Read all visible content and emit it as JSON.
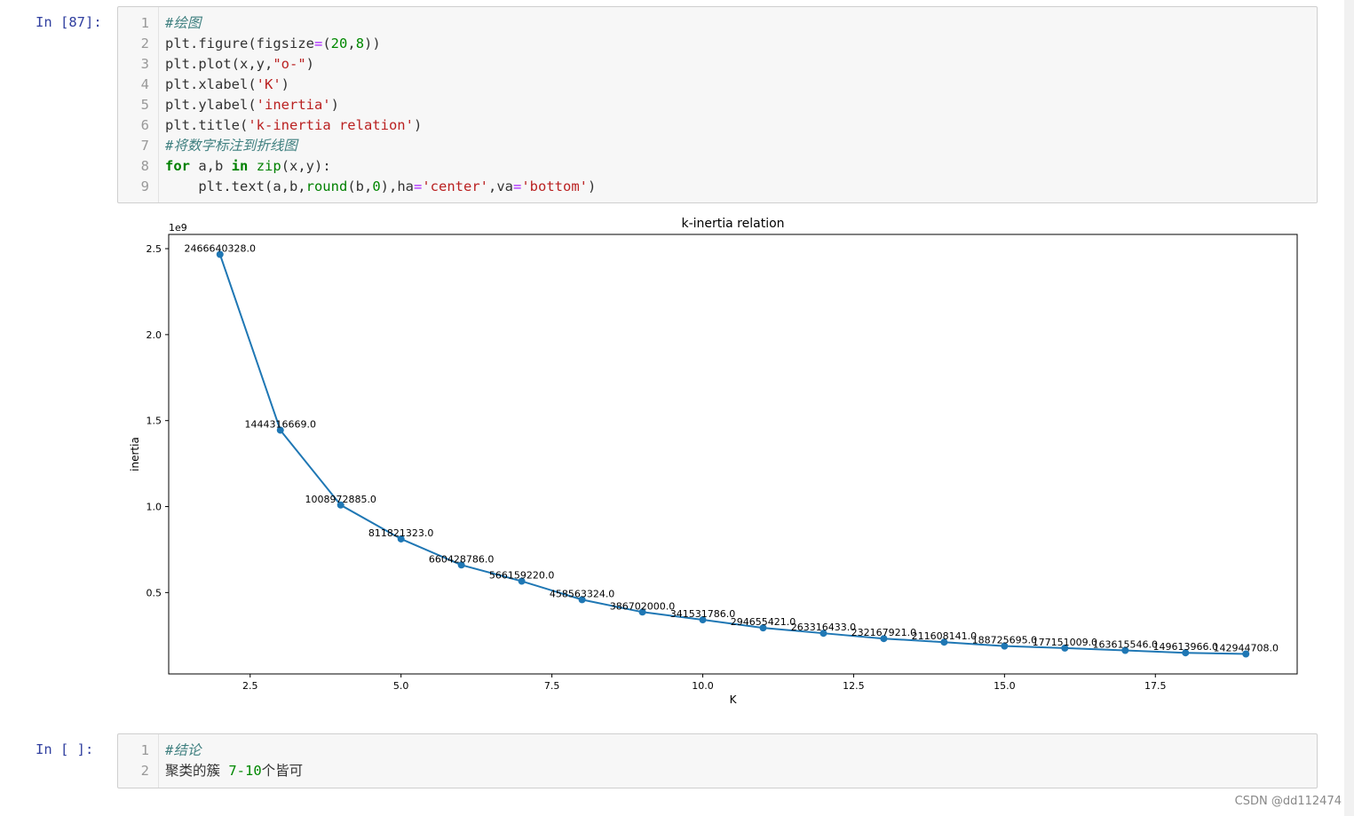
{
  "cells": [
    {
      "prompt": "In [87]:",
      "line_numbers": [
        1,
        2,
        3,
        4,
        5,
        6,
        7,
        8,
        9
      ],
      "lines": [
        {
          "tokens": [
            {
              "text": "#绘图",
              "color": "#408080",
              "italic": true
            }
          ]
        },
        {
          "tokens": [
            {
              "text": "plt.figure(figsize",
              "color": "#333333"
            },
            {
              "text": "=",
              "color": "#aa22ff"
            },
            {
              "text": "(",
              "color": "#333333"
            },
            {
              "text": "20",
              "color": "#008800"
            },
            {
              "text": ",",
              "color": "#333333"
            },
            {
              "text": "8",
              "color": "#008800"
            },
            {
              "text": "))",
              "color": "#333333"
            }
          ]
        },
        {
          "tokens": [
            {
              "text": "plt.plot(x,y,",
              "color": "#333333"
            },
            {
              "text": "\"o-\"",
              "color": "#ba2121"
            },
            {
              "text": ")",
              "color": "#333333"
            }
          ]
        },
        {
          "tokens": [
            {
              "text": "plt.xlabel(",
              "color": "#333333"
            },
            {
              "text": "'K'",
              "color": "#ba2121"
            },
            {
              "text": ")",
              "color": "#333333"
            }
          ]
        },
        {
          "tokens": [
            {
              "text": "plt.ylabel(",
              "color": "#333333"
            },
            {
              "text": "'inertia'",
              "color": "#ba2121"
            },
            {
              "text": ")",
              "color": "#333333"
            }
          ]
        },
        {
          "tokens": [
            {
              "text": "plt.title(",
              "color": "#333333"
            },
            {
              "text": "'k-inertia relation'",
              "color": "#ba2121"
            },
            {
              "text": ")",
              "color": "#333333"
            }
          ]
        },
        {
          "tokens": [
            {
              "text": "#将数字标注到折线图",
              "color": "#408080",
              "italic": true
            }
          ]
        },
        {
          "tokens": [
            {
              "text": "for",
              "color": "#008000",
              "bold": true
            },
            {
              "text": " a,b ",
              "color": "#333333"
            },
            {
              "text": "in",
              "color": "#008000",
              "bold": true
            },
            {
              "text": " ",
              "color": "#333333"
            },
            {
              "text": "zip",
              "color": "#008000"
            },
            {
              "text": "(x,y):",
              "color": "#333333"
            }
          ]
        },
        {
          "tokens": [
            {
              "text": "    plt.text(a,b,",
              "color": "#333333"
            },
            {
              "text": "round",
              "color": "#008000"
            },
            {
              "text": "(b,",
              "color": "#333333"
            },
            {
              "text": "0",
              "color": "#008800"
            },
            {
              "text": "),ha",
              "color": "#333333"
            },
            {
              "text": "=",
              "color": "#aa22ff"
            },
            {
              "text": "'center'",
              "color": "#ba2121"
            },
            {
              "text": ",va",
              "color": "#333333"
            },
            {
              "text": "=",
              "color": "#aa22ff"
            },
            {
              "text": "'bottom'",
              "color": "#ba2121"
            },
            {
              "text": ")",
              "color": "#333333"
            }
          ]
        }
      ]
    },
    {
      "prompt": "In [ ]:",
      "line_numbers": [
        1,
        2
      ],
      "lines": [
        {
          "tokens": [
            {
              "text": "#结论",
              "color": "#408080",
              "italic": true
            }
          ]
        },
        {
          "tokens": [
            {
              "text": "聚类的簇 ",
              "color": "#333333"
            },
            {
              "text": "7-10",
              "color": "#008800"
            },
            {
              "text": "个皆可",
              "color": "#333333"
            }
          ]
        }
      ]
    }
  ],
  "chart_data": {
    "type": "line",
    "title": "k-inertia relation",
    "x_label": "K",
    "y_label": "inertia",
    "y_offset_label": "1e9",
    "color": "#1f77b4",
    "x": [
      2,
      3,
      4,
      5,
      6,
      7,
      8,
      9,
      10,
      11,
      12,
      13,
      14,
      15,
      16,
      17,
      18,
      19
    ],
    "values": [
      2466640328,
      1444316669,
      1008972885,
      811821323,
      660428786,
      566159220,
      458563324,
      386702000,
      341531786,
      294655421,
      263316433,
      232167921,
      211608141,
      188725695,
      177151009,
      163615546,
      149613966,
      142944708
    ],
    "value_labels": [
      "2466640328.0",
      "1444316669.0",
      "1008972885.0",
      "811821323.0",
      "660428786.0",
      "566159220.0",
      "458563324.0",
      "386702000.0",
      "341531786.0",
      "294655421.0",
      "263316433.0",
      "232167921.0",
      "211608141.0",
      "188725695.0",
      "177151009.0",
      "163615546.0",
      "149613966.0",
      "142944708.0"
    ],
    "xlim": [
      1.15,
      19.85
    ],
    "xticks": [
      2.5,
      {
        "value": 5,
        "label": "5.0"
      },
      7.5,
      {
        "value": 10,
        "label": "10.0"
      },
      12.5,
      {
        "value": 15,
        "label": "15.0"
      },
      17.5
    ],
    "ylim": [
      26759927,
      2582825109
    ],
    "yticks": [
      {
        "value": 500000000,
        "label": "0.5"
      },
      {
        "value": 1000000000,
        "label": "1.0"
      },
      {
        "value": 1500000000,
        "label": "1.5"
      },
      {
        "value": 2000000000,
        "label": "2.0"
      },
      {
        "value": 2500000000,
        "label": "2.5"
      }
    ],
    "grid": false
  },
  "watermark": "CSDN @dd112474"
}
